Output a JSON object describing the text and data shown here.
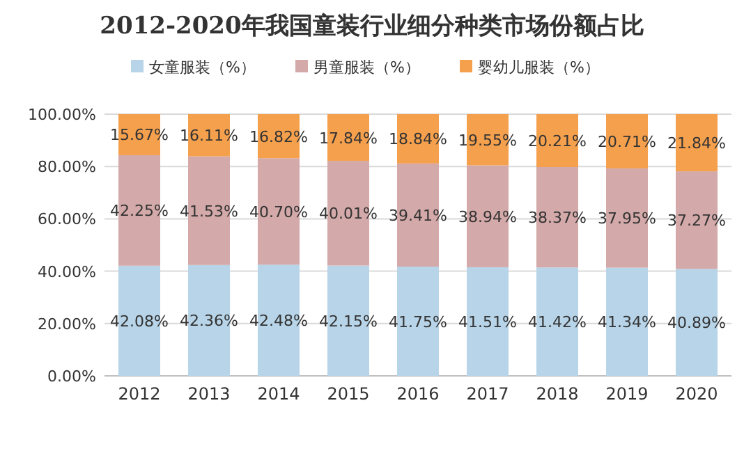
{
  "chart_data": {
    "type": "bar",
    "title": "2012-2020年我国童装行业细分种类市场份额占比",
    "stacked": true,
    "legend": "top",
    "grid": "y",
    "categories": [
      "2012",
      "2013",
      "2014",
      "2015",
      "2016",
      "2017",
      "2018",
      "2019",
      "2020"
    ],
    "ylim": [
      0,
      100
    ],
    "yticks": [
      {
        "value": 0,
        "label": "0.00%"
      },
      {
        "value": 20,
        "label": "20.00%"
      },
      {
        "value": 40,
        "label": "40.00%"
      },
      {
        "value": 60,
        "label": "60.00%"
      },
      {
        "value": 80,
        "label": "80.00%"
      },
      {
        "value": 100,
        "label": "100.00%"
      }
    ],
    "series": [
      {
        "name": "女童服装（%）",
        "color": "#b7d4e8",
        "values": [
          42.08,
          42.36,
          42.48,
          42.15,
          41.75,
          41.51,
          41.42,
          41.34,
          40.89
        ],
        "value_labels": [
          "42.08%",
          "42.36%",
          "42.48%",
          "42.15%",
          "41.75%",
          "41.51%",
          "41.42%",
          "41.34%",
          "40.89%"
        ]
      },
      {
        "name": "男童服装（%）",
        "color": "#d4a9a9",
        "values": [
          42.25,
          41.53,
          40.7,
          40.01,
          39.41,
          38.94,
          38.37,
          37.95,
          37.27
        ],
        "value_labels": [
          "42.25%",
          "41.53%",
          "40.70%",
          "40.01%",
          "39.41%",
          "38.94%",
          "38.37%",
          "37.95%",
          "37.27%"
        ]
      },
      {
        "name": "婴幼儿服装（%）",
        "color": "#f5a04d",
        "values": [
          15.67,
          16.11,
          16.82,
          17.84,
          18.84,
          19.55,
          20.21,
          20.71,
          21.84
        ],
        "value_labels": [
          "15.67%",
          "16.11%",
          "16.82%",
          "17.84%",
          "18.84%",
          "19.55%",
          "20.21%",
          "20.71%",
          "21.84%"
        ]
      }
    ]
  }
}
